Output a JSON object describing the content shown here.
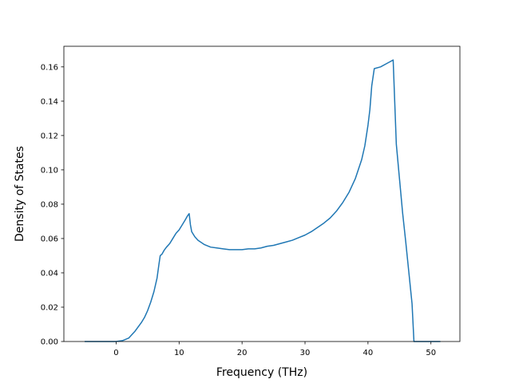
{
  "chart_data": {
    "type": "line",
    "title": "",
    "xlabel": "Frequency (THz)",
    "ylabel": "Density of States",
    "xlim": [
      -8.3,
      54.6
    ],
    "ylim": [
      0.0,
      0.172
    ],
    "grid": false,
    "x_ticks": [
      0,
      10,
      20,
      30,
      40,
      50
    ],
    "x_tick_labels": [
      "0",
      "10",
      "20",
      "30",
      "40",
      "50"
    ],
    "y_ticks": [
      0.0,
      0.02,
      0.04,
      0.06,
      0.08,
      0.1,
      0.12,
      0.14,
      0.16
    ],
    "y_tick_labels": [
      "0.00",
      "0.02",
      "0.04",
      "0.06",
      "0.08",
      "0.10",
      "0.12",
      "0.14",
      "0.16"
    ],
    "colors": {
      "line": "#1f77b4",
      "axes": "#000000",
      "background": "#ffffff"
    },
    "series": [
      {
        "x": [
          -5.0,
          -2.0,
          0.0,
          1.0,
          2.0,
          2.5,
          3.0,
          3.5,
          4.0,
          4.5,
          5.0,
          5.5,
          6.0,
          6.5,
          6.8,
          7.0,
          7.3,
          7.6,
          8.0,
          8.5,
          9.0,
          9.5,
          10.0,
          10.5,
          11.0,
          11.3,
          11.6,
          11.8,
          12.0,
          12.5,
          13.0,
          14.0,
          15.0,
          16.0,
          17.0,
          18.0,
          19.0,
          20.0,
          21.0,
          22.0,
          23.0,
          24.0,
          25.0,
          26.0,
          27.0,
          28.0,
          29.0,
          30.0,
          31.0,
          32.0,
          33.0,
          34.0,
          35.0,
          36.0,
          37.0,
          38.0,
          39.0,
          39.5,
          40.0,
          40.3,
          40.6,
          41.0,
          42.0,
          43.0,
          43.5,
          44.0,
          44.5,
          45.0,
          45.5,
          46.0,
          46.5,
          47.0,
          47.3,
          48.0,
          50.0,
          51.5
        ],
        "y": [
          0.0,
          0.0,
          0.0,
          0.0005,
          0.002,
          0.004,
          0.006,
          0.0085,
          0.011,
          0.014,
          0.018,
          0.023,
          0.029,
          0.037,
          0.045,
          0.05,
          0.051,
          0.053,
          0.055,
          0.057,
          0.06,
          0.063,
          0.065,
          0.068,
          0.071,
          0.073,
          0.0745,
          0.068,
          0.064,
          0.061,
          0.059,
          0.0565,
          0.055,
          0.0545,
          0.054,
          0.0535,
          0.0535,
          0.0535,
          0.054,
          0.054,
          0.0545,
          0.0555,
          0.056,
          0.057,
          0.058,
          0.059,
          0.0605,
          0.062,
          0.064,
          0.0665,
          0.069,
          0.072,
          0.076,
          0.081,
          0.087,
          0.095,
          0.106,
          0.114,
          0.126,
          0.135,
          0.149,
          0.159,
          0.16,
          0.162,
          0.163,
          0.164,
          0.115,
          0.095,
          0.075,
          0.058,
          0.04,
          0.022,
          0.0,
          0.0,
          0.0,
          0.0
        ]
      }
    ]
  }
}
